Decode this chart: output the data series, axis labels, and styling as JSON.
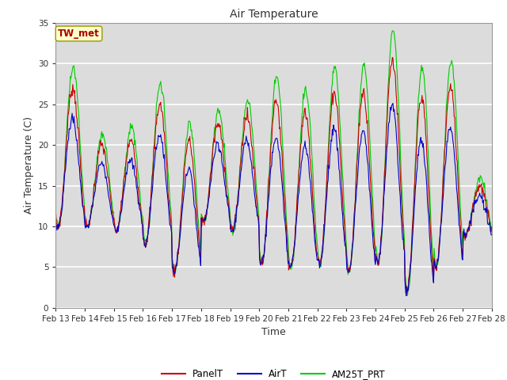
{
  "title": "Air Temperature",
  "xlabel": "Time",
  "ylabel": "Air Temperature (C)",
  "ylim": [
    0,
    35
  ],
  "yticks": [
    0,
    5,
    10,
    15,
    20,
    25,
    30,
    35
  ],
  "plot_bg_color": "#dcdcdc",
  "grid_color": "white",
  "series": [
    "PanelT",
    "AirT",
    "AM25T_PRT"
  ],
  "colors": [
    "#cc0000",
    "#0000cc",
    "#00cc00"
  ],
  "legend_label": "TW_met",
  "legend_label_color": "#aa0000",
  "legend_box_facecolor": "#ffffcc",
  "legend_box_edgecolor": "#999900",
  "date_labels": [
    "Feb 13",
    "Feb 14",
    "Feb 15",
    "Feb 16",
    "Feb 17",
    "Feb 18",
    "Feb 19",
    "Feb 20",
    "Feb 21",
    "Feb 22",
    "Feb 23",
    "Feb 24",
    "Feb 25",
    "Feb 26",
    "Feb 27",
    "Feb 28"
  ],
  "n_days": 15,
  "n_points": 720
}
